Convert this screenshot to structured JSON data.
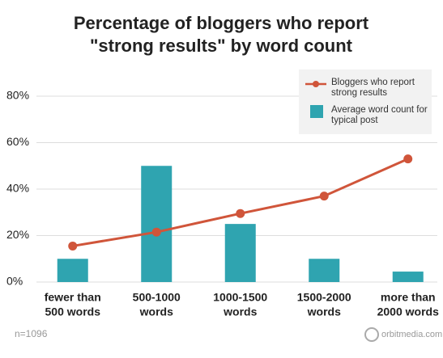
{
  "chart_data": {
    "type": "bar-line",
    "title": [
      "Percentage of bloggers who report",
      "\"strong results\" by word count"
    ],
    "categories": [
      [
        "fewer than",
        "500 words"
      ],
      [
        "500-1000",
        "words"
      ],
      [
        "1000-1500",
        "words"
      ],
      [
        "1500-2000",
        "words"
      ],
      [
        "more than",
        "2000 words"
      ]
    ],
    "series": [
      {
        "name": "Bloggers who report strong results",
        "type": "line",
        "color": "#d0553a",
        "values": [
          15.5,
          21.5,
          29.5,
          37,
          53
        ]
      },
      {
        "name": "Average word count for typical post",
        "type": "bar",
        "color": "#2fa4b0",
        "values": [
          10,
          50,
          25,
          10,
          4.5
        ]
      }
    ],
    "ylim": [
      0,
      80
    ],
    "yticks": [
      {
        "value": 0,
        "label": "0%"
      },
      {
        "value": 20,
        "label": "20%"
      },
      {
        "value": 40,
        "label": "40%"
      },
      {
        "value": 60,
        "label": "60%"
      },
      {
        "value": 80,
        "label": "80%"
      }
    ],
    "grid": true,
    "legend": "top-right",
    "note": "n=1096",
    "source": "orbitmedia.com"
  }
}
